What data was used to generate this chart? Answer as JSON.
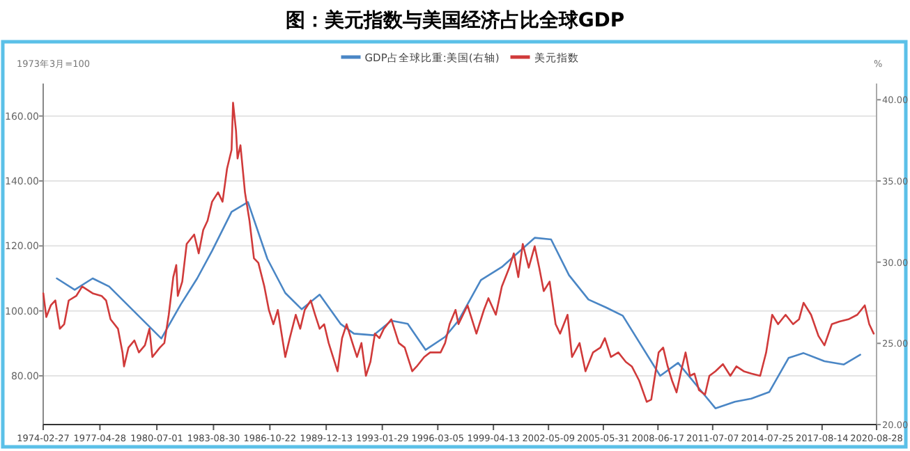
{
  "chart_data": {
    "type": "line",
    "title": "图：美元指数与美国经济占比全球GDP",
    "ylabel": "1973年3月=100",
    "y2label": "%",
    "legend": "top",
    "grid": "y",
    "line_style": "solid",
    "marker": "none",
    "xlim": [
      "1974-02-27",
      "2020-08-28"
    ],
    "xticks": [
      {
        "value": "1974-02-27",
        "label": "1974-02-27"
      },
      {
        "value": "1977-04-28",
        "label": "1977-04-28"
      },
      {
        "value": "1980-07-01",
        "label": "1980-07-01"
      },
      {
        "value": "1983-08-30",
        "label": "1983-08-30"
      },
      {
        "value": "1986-10-22",
        "label": "1986-10-22"
      },
      {
        "value": "1989-12-13",
        "label": "1989-12-13"
      },
      {
        "value": "1993-01-29",
        "label": "1993-01-29"
      },
      {
        "value": "1996-03-05",
        "label": "1996-03-05"
      },
      {
        "value": "1999-04-13",
        "label": "1999-04-13"
      },
      {
        "value": "2002-05-09",
        "label": "2002-05-09"
      },
      {
        "value": "2005-05-31",
        "label": "2005-05-31"
      },
      {
        "value": "2008-06-17",
        "label": "2008-06-17"
      },
      {
        "value": "2011-07-07",
        "label": "2011-07-07"
      },
      {
        "value": "2014-07-25",
        "label": "2014-07-25"
      },
      {
        "value": "2017-08-14",
        "label": "2017-08-14"
      },
      {
        "value": "2020-08-28",
        "label": "2020-08-28"
      }
    ],
    "ylim": [
      65,
      170
    ],
    "yticks": [
      {
        "value": 80,
        "label": "80.00"
      },
      {
        "value": 100,
        "label": "100.00"
      },
      {
        "value": 120,
        "label": "120.00"
      },
      {
        "value": 140,
        "label": "140.00"
      },
      {
        "value": 160,
        "label": "160.00"
      }
    ],
    "y2lim": [
      20,
      41
    ],
    "y2ticks": [
      {
        "value": 20,
        "label": "20.00"
      },
      {
        "value": 25,
        "label": "25.00"
      },
      {
        "value": 30,
        "label": "30.00"
      },
      {
        "value": 35,
        "label": "35.00"
      },
      {
        "value": 40,
        "label": "40.00"
      }
    ],
    "series": [
      {
        "name": "GDP占全球比重:美国(右轴)",
        "color": "#4a86c5",
        "axis": "y2",
        "x": [
          "1974-12",
          "1975-12",
          "1976-12",
          "1977-11",
          "1980-10",
          "1981-11",
          "1982-10",
          "1983-08",
          "1984-09",
          "1985-08",
          "1986-09",
          "1987-09",
          "1988-08",
          "1989-08",
          "1990-10",
          "1991-07",
          "1992-08",
          "1993-08",
          "1994-07",
          "1995-07",
          "1996-08",
          "1997-05",
          "1998-08",
          "1999-10",
          "2001-08",
          "2002-07",
          "2003-07",
          "2004-08",
          "2005-08",
          "2006-07",
          "2008-08",
          "2009-08",
          "2011-09",
          "2012-10",
          "2013-09",
          "2014-09",
          "2015-10",
          "2016-08",
          "2017-10",
          "2018-11",
          "2019-10"
        ],
        "values": [
          29.0,
          28.3,
          29.0,
          28.5,
          25.3,
          27.4,
          29.0,
          30.7,
          33.1,
          33.7,
          30.2,
          28.1,
          27.1,
          28.0,
          26.2,
          25.6,
          25.5,
          26.4,
          26.2,
          24.6,
          25.4,
          26.4,
          28.9,
          29.7,
          31.5,
          31.4,
          29.2,
          27.7,
          27.2,
          26.7,
          23.0,
          23.8,
          21.0,
          21.4,
          21.6,
          22.0,
          24.1,
          24.4,
          23.9,
          23.7,
          24.3
        ]
      },
      {
        "name": "美元指数",
        "color": "#d03a3a",
        "x": [
          "1974-03",
          "1974-05",
          "1974-08",
          "1974-11",
          "1975-02",
          "1975-05",
          "1975-08",
          "1976-01",
          "1976-05",
          "1976-12",
          "1977-06",
          "1977-09",
          "1977-12",
          "1978-05",
          "1978-08",
          "1978-09",
          "1978-12",
          "1979-04",
          "1979-07",
          "1979-11",
          "1980-02",
          "1980-04",
          "1980-09",
          "1980-12",
          "1981-03",
          "1981-06",
          "1981-08",
          "1981-09",
          "1981-12",
          "1982-03",
          "1982-08",
          "1982-11",
          "1983-02",
          "1983-05",
          "1983-08",
          "1983-12",
          "1984-03",
          "1984-06",
          "1984-09",
          "1984-10",
          "1984-12",
          "1985-01",
          "1985-03",
          "1985-06",
          "1985-09",
          "1985-12",
          "1986-03",
          "1986-07",
          "1986-10",
          "1987-01",
          "1987-04",
          "1987-09",
          "1987-12",
          "1988-04",
          "1988-07",
          "1988-10",
          "1989-02",
          "1989-05",
          "1989-08",
          "1989-11",
          "1990-02",
          "1990-05",
          "1990-08",
          "1990-11",
          "1991-02",
          "1991-06",
          "1991-09",
          "1991-12",
          "1992-03",
          "1992-06",
          "1992-09",
          "1992-12",
          "1993-03",
          "1993-08",
          "1994-01",
          "1994-05",
          "1994-10",
          "1995-01",
          "1995-06",
          "1995-10",
          "1996-05",
          "1996-08",
          "1996-11",
          "1997-03",
          "1997-05",
          "1997-11",
          "1998-05",
          "1998-10",
          "1999-01",
          "1999-06",
          "1999-10",
          "2000-03",
          "2000-06",
          "2000-09",
          "2000-12",
          "2001-04",
          "2001-08",
          "2001-11",
          "2002-02",
          "2002-06",
          "2002-10",
          "2003-01",
          "2003-06",
          "2003-09",
          "2004-02",
          "2004-06",
          "2004-11",
          "2005-04",
          "2005-07",
          "2005-11",
          "2006-04",
          "2006-09",
          "2007-01",
          "2007-06",
          "2007-11",
          "2008-02",
          "2008-05",
          "2008-07",
          "2008-10",
          "2009-01",
          "2009-04",
          "2009-07",
          "2009-10",
          "2010-01",
          "2010-04",
          "2010-07",
          "2010-10",
          "2011-02",
          "2011-05",
          "2011-09",
          "2012-02",
          "2012-07",
          "2012-11",
          "2013-04",
          "2013-09",
          "2014-03",
          "2014-07",
          "2014-11",
          "2015-03",
          "2015-08",
          "2016-01",
          "2016-05",
          "2016-08",
          "2017-01",
          "2017-06",
          "2017-10",
          "2018-03",
          "2018-08",
          "2019-02",
          "2019-08",
          "2020-01",
          "2020-04",
          "2020-07"
        ],
        "values": [
          105.4,
          98.1,
          101.7,
          103.2,
          94.5,
          95.9,
          103.2,
          104.6,
          107.5,
          105.4,
          104.6,
          103.2,
          97.4,
          94.5,
          87.2,
          82.9,
          88.7,
          90.9,
          87.2,
          89.4,
          94.5,
          85.8,
          88.7,
          90.1,
          98.8,
          110.4,
          114.1,
          104.6,
          109.0,
          120.6,
          123.5,
          117.7,
          124.9,
          127.8,
          133.6,
          136.5,
          133.6,
          143.8,
          149.6,
          164.1,
          155.4,
          146.9,
          151.0,
          136.5,
          127.8,
          116.2,
          114.8,
          107.5,
          100.3,
          95.9,
          100.3,
          85.8,
          91.6,
          98.8,
          94.5,
          100.3,
          103.2,
          98.8,
          94.5,
          95.9,
          90.1,
          85.8,
          81.4,
          91.6,
          95.9,
          90.1,
          85.8,
          90.1,
          80.0,
          84.3,
          93.0,
          91.6,
          94.5,
          97.4,
          90.1,
          88.7,
          81.4,
          82.9,
          85.8,
          87.2,
          87.2,
          90.1,
          95.9,
          100.3,
          95.9,
          101.7,
          93.0,
          100.3,
          103.9,
          98.8,
          107.5,
          113.3,
          117.7,
          110.4,
          120.6,
          113.3,
          119.9,
          113.3,
          106.1,
          109.0,
          95.9,
          93.0,
          98.8,
          85.8,
          90.1,
          81.4,
          87.2,
          88.7,
          91.6,
          85.8,
          87.2,
          84.3,
          82.9,
          78.5,
          72.0,
          72.7,
          81.4,
          87.2,
          88.7,
          82.9,
          78.5,
          74.9,
          81.4,
          87.2,
          80.0,
          80.7,
          75.6,
          74.2,
          80.0,
          81.4,
          83.6,
          80.0,
          82.9,
          81.4,
          80.7,
          80.0,
          87.2,
          98.8,
          95.9,
          98.8,
          95.9,
          97.4,
          102.5,
          98.8,
          92.3,
          89.4,
          95.9,
          96.7,
          97.4,
          98.8,
          101.7,
          95.9,
          93.0
        ]
      }
    ]
  }
}
